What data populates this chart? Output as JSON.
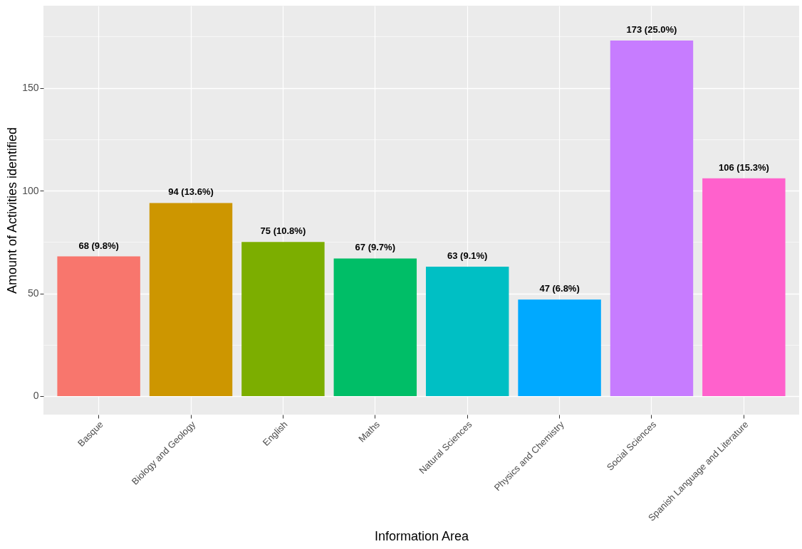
{
  "chart_data": {
    "type": "bar",
    "xlabel": "Information Area",
    "ylabel": "Amount of Activities identified",
    "categories": [
      "Basque",
      "Biology and Geology",
      "English",
      "Maths",
      "Natural Sciences",
      "Physics and Chemistry",
      "Social Sciences",
      "Spanish Language and Literature"
    ],
    "values": [
      68,
      94,
      75,
      67,
      63,
      47,
      173,
      106
    ],
    "colors": [
      "#f8766d",
      "#cd9600",
      "#7cae00",
      "#00be67",
      "#00bfc4",
      "#00a9ff",
      "#c77cff",
      "#ff61cc"
    ],
    "value_labels": [
      "68 (9.8%)",
      "94 (13.6%)",
      "75 (10.8%)",
      "67 (9.7%)",
      "63 (9.1%)",
      "47 (6.8%)",
      "173 (25.0%)",
      "106 (15.3%)"
    ],
    "ylim": [
      -9,
      190
    ],
    "yticks": [
      0,
      {
        "value": 25,
        "label": null
      },
      50,
      {
        "value": 75,
        "label": null
      },
      100,
      {
        "value": 125,
        "label": null
      },
      150,
      {
        "value": 175,
        "label": null
      }
    ],
    "grid": true
  }
}
